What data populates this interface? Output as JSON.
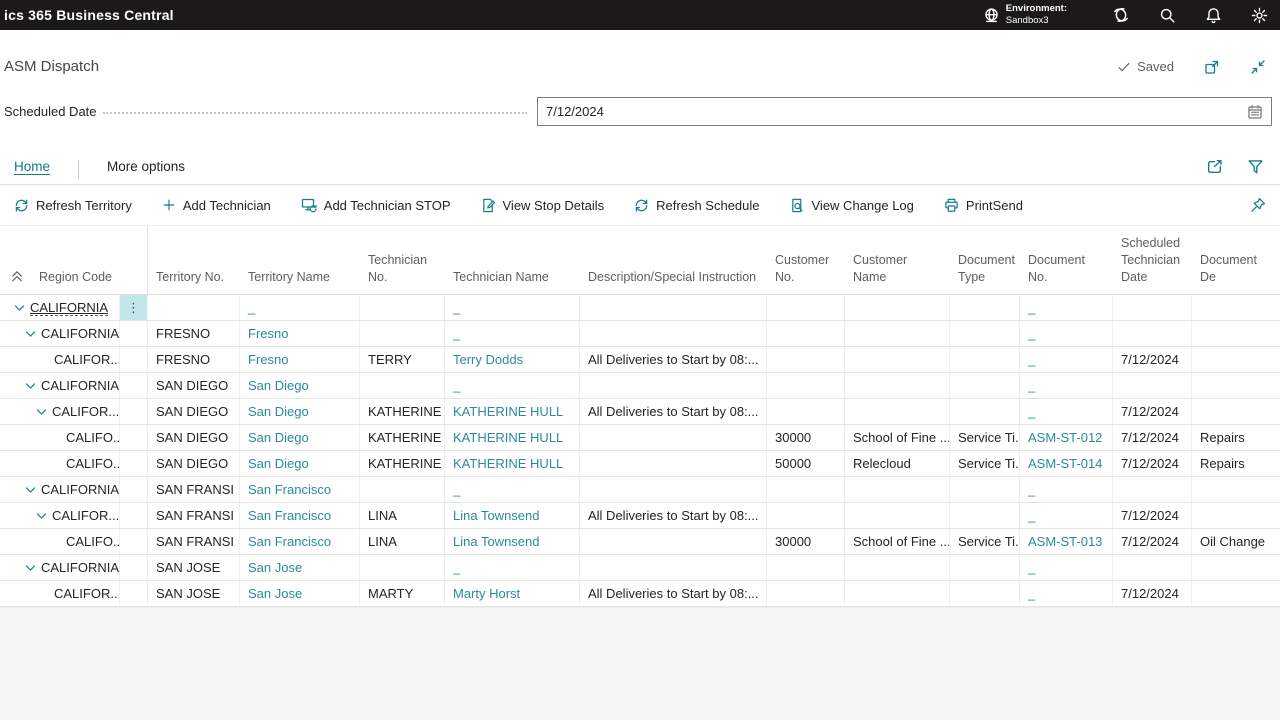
{
  "app_header": {
    "title": "ics 365 Business Central",
    "environment_label": "Environment:",
    "environment_name": "Sandbox3"
  },
  "page": {
    "title": "ASM Dispatch",
    "save_status": "Saved"
  },
  "fields": {
    "scheduled_date": {
      "label": "Scheduled Date",
      "value": "7/12/2024"
    }
  },
  "tabs": {
    "home": "Home",
    "more_options": "More options"
  },
  "toolbar": {
    "buttons": [
      {
        "label": "Refresh Territory",
        "icon": "refresh-icon"
      },
      {
        "label": "Add Technician",
        "icon": "plus-icon"
      },
      {
        "label": "Add Technician STOP",
        "icon": "monitor-refresh-icon"
      },
      {
        "label": "View Stop Details",
        "icon": "document-edit-icon"
      },
      {
        "label": "Refresh Schedule",
        "icon": "refresh-icon"
      },
      {
        "label": "View Change Log",
        "icon": "document-search-icon"
      },
      {
        "label": "PrintSend",
        "icon": "printer-icon"
      }
    ]
  },
  "icons": {
    "row_menu": "⋮"
  },
  "colors": {
    "accent_teal": "#157e8c",
    "link_teal": "#2b8a9a",
    "topbar_bg": "#1b1a19",
    "menu_cell_highlight": "#c2e7e9",
    "header_text": "#605e5c",
    "body_text": "#252423"
  },
  "table": {
    "columns": [
      "Region Code",
      "Territory No.",
      "Territory Name",
      "Technician No.",
      "Technician Name",
      "Description/Special Instruction",
      "Customer No.",
      "Customer Name",
      "Document Type",
      "Document No.",
      "Scheduled Technician Date",
      "Document De"
    ],
    "rows": [
      {
        "indent": 1,
        "chevron": true,
        "selected": true,
        "menu": true,
        "region": "CALIFORNIA",
        "territory_no": "",
        "territory_name": "_",
        "technician_no": "",
        "technician_name": "_",
        "description": "",
        "customer_no": "",
        "customer_name": "",
        "document_type": "",
        "document_no": "_",
        "scheduled_date": "",
        "document_desc": ""
      },
      {
        "indent": 2,
        "chevron": true,
        "region": "CALIFORNIA",
        "territory_no": "FRESNO",
        "territory_name": "Fresno",
        "technician_no": "",
        "technician_name": "_",
        "description": "",
        "customer_no": "",
        "customer_name": "",
        "document_type": "",
        "document_no": "_",
        "scheduled_date": "",
        "document_desc": ""
      },
      {
        "indent": 3,
        "chevron": false,
        "region": "CALIFOR...",
        "territory_no": "FRESNO",
        "territory_name": "Fresno",
        "technician_no": "TERRY",
        "technician_name": "Terry Dodds",
        "description": "All Deliveries to Start by 08:...",
        "customer_no": "",
        "customer_name": "",
        "document_type": "",
        "document_no": "_",
        "scheduled_date": "7/12/2024",
        "document_desc": ""
      },
      {
        "indent": 2,
        "chevron": true,
        "region": "CALIFORNIA",
        "territory_no": "SAN DIEGO",
        "territory_name": "San Diego",
        "technician_no": "",
        "technician_name": "_",
        "description": "",
        "customer_no": "",
        "customer_name": "",
        "document_type": "",
        "document_no": "_",
        "scheduled_date": "",
        "document_desc": ""
      },
      {
        "indent": 3,
        "chevron": true,
        "region": "CALIFOR...",
        "territory_no": "SAN DIEGO",
        "territory_name": "San Diego",
        "technician_no": "KATHERINE",
        "technician_name": "KATHERINE HULL",
        "description": "All Deliveries to Start by 08:...",
        "customer_no": "",
        "customer_name": "",
        "document_type": "",
        "document_no": "_",
        "scheduled_date": "7/12/2024",
        "document_desc": ""
      },
      {
        "indent": 4,
        "chevron": false,
        "region": "CALIFO...",
        "territory_no": "SAN DIEGO",
        "territory_name": "San Diego",
        "technician_no": "KATHERINE",
        "technician_name": "KATHERINE HULL",
        "description": "",
        "customer_no": "30000",
        "customer_name": "School of Fine ...",
        "document_type": "Service Ti...",
        "document_no": "ASM-ST-012",
        "scheduled_date": "7/12/2024",
        "document_desc": "Repairs"
      },
      {
        "indent": 4,
        "chevron": false,
        "region": "CALIFO...",
        "territory_no": "SAN DIEGO",
        "territory_name": "San Diego",
        "technician_no": "KATHERINE",
        "technician_name": "KATHERINE HULL",
        "description": "",
        "customer_no": "50000",
        "customer_name": "Relecloud",
        "document_type": "Service Ti...",
        "document_no": "ASM-ST-014",
        "scheduled_date": "7/12/2024",
        "document_desc": "Repairs"
      },
      {
        "indent": 2,
        "chevron": true,
        "region": "CALIFORNIA",
        "territory_no": "SAN FRANSI",
        "territory_name": "San Francisco",
        "technician_no": "",
        "technician_name": "_",
        "description": "",
        "customer_no": "",
        "customer_name": "",
        "document_type": "",
        "document_no": "_",
        "scheduled_date": "",
        "document_desc": ""
      },
      {
        "indent": 3,
        "chevron": true,
        "region": "CALIFOR...",
        "territory_no": "SAN FRANSI",
        "territory_name": "San Francisco",
        "technician_no": "LINA",
        "technician_name": "Lina Townsend",
        "description": "All Deliveries to Start by 08:...",
        "customer_no": "",
        "customer_name": "",
        "document_type": "",
        "document_no": "_",
        "scheduled_date": "7/12/2024",
        "document_desc": ""
      },
      {
        "indent": 4,
        "chevron": false,
        "region": "CALIFO...",
        "territory_no": "SAN FRANSI",
        "territory_name": "San Francisco",
        "technician_no": "LINA",
        "technician_name": "Lina Townsend",
        "description": "",
        "customer_no": "30000",
        "customer_name": "School of Fine ...",
        "document_type": "Service Ti...",
        "document_no": "ASM-ST-013",
        "scheduled_date": "7/12/2024",
        "document_desc": "Oil Change"
      },
      {
        "indent": 2,
        "chevron": true,
        "region": "CALIFORNIA",
        "territory_no": "SAN JOSE",
        "territory_name": "San Jose",
        "technician_no": "",
        "technician_name": "_",
        "description": "",
        "customer_no": "",
        "customer_name": "",
        "document_type": "",
        "document_no": "_",
        "scheduled_date": "",
        "document_desc": ""
      },
      {
        "indent": 3,
        "chevron": false,
        "region": "CALIFOR...",
        "territory_no": "SAN JOSE",
        "territory_name": "San Jose",
        "technician_no": "MARTY",
        "technician_name": "Marty Horst",
        "description": "All Deliveries to Start by 08:...",
        "customer_no": "",
        "customer_name": "",
        "document_type": "",
        "document_no": "_",
        "scheduled_date": "7/12/2024",
        "document_desc": ""
      }
    ]
  }
}
